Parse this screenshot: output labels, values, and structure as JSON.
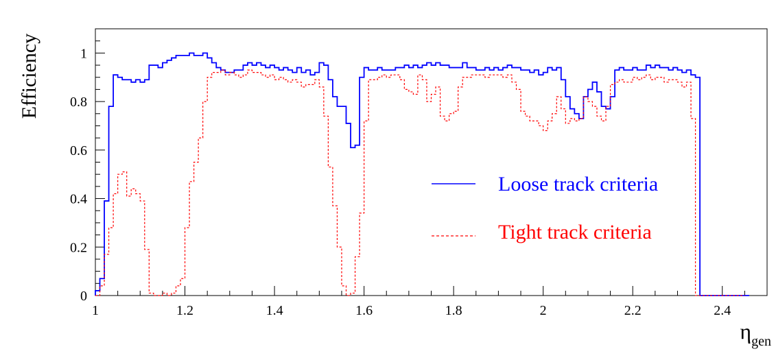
{
  "chart_data": {
    "type": "line",
    "style": "step-histogram",
    "xlabel": "η",
    "xlabel_sub": "gen",
    "ylabel": "Efficiency",
    "xlim": [
      1.0,
      2.5
    ],
    "ylim": [
      0.0,
      1.1
    ],
    "xticks": [
      1,
      1.2,
      1.4,
      1.6,
      1.8,
      2,
      2.2,
      2.4
    ],
    "xtick_labels": [
      "1",
      "1.2",
      "1.4",
      "1.6",
      "1.8",
      "2",
      "2.2",
      "2.4"
    ],
    "yticks": [
      0,
      0.2,
      0.4,
      0.6,
      0.8,
      1
    ],
    "ytick_labels": [
      "0",
      "0.2",
      "0.4",
      "0.6",
      "0.8",
      "1"
    ],
    "grid": false,
    "legend_position": "center-right",
    "bin_width": 0.01,
    "bin_start": 1.0,
    "series": [
      {
        "name": "Loose track criteria",
        "color": "#0000ff",
        "line": "solid",
        "values": [
          0.02,
          0.07,
          0.39,
          0.78,
          0.91,
          0.9,
          0.89,
          0.89,
          0.88,
          0.89,
          0.88,
          0.89,
          0.95,
          0.95,
          0.94,
          0.96,
          0.97,
          0.98,
          0.99,
          0.99,
          0.99,
          1.0,
          0.99,
          0.99,
          1.0,
          0.98,
          0.96,
          0.94,
          0.93,
          0.92,
          0.92,
          0.93,
          0.93,
          0.95,
          0.96,
          0.95,
          0.96,
          0.95,
          0.94,
          0.95,
          0.94,
          0.93,
          0.94,
          0.93,
          0.92,
          0.94,
          0.92,
          0.93,
          0.91,
          0.92,
          0.96,
          0.95,
          0.89,
          0.82,
          0.78,
          0.78,
          0.71,
          0.61,
          0.62,
          0.9,
          0.94,
          0.93,
          0.93,
          0.94,
          0.93,
          0.93,
          0.93,
          0.94,
          0.94,
          0.95,
          0.94,
          0.95,
          0.94,
          0.95,
          0.96,
          0.95,
          0.96,
          0.95,
          0.95,
          0.94,
          0.94,
          0.94,
          0.96,
          0.94,
          0.94,
          0.93,
          0.93,
          0.94,
          0.93,
          0.94,
          0.93,
          0.94,
          0.95,
          0.94,
          0.94,
          0.93,
          0.93,
          0.92,
          0.93,
          0.91,
          0.92,
          0.94,
          0.93,
          0.94,
          0.89,
          0.82,
          0.77,
          0.75,
          0.73,
          0.82,
          0.85,
          0.88,
          0.84,
          0.78,
          0.77,
          0.82,
          0.93,
          0.94,
          0.93,
          0.93,
          0.94,
          0.93,
          0.93,
          0.95,
          0.94,
          0.95,
          0.94,
          0.94,
          0.93,
          0.94,
          0.93,
          0.92,
          0.93,
          0.91,
          0.9,
          0.0,
          0.0,
          0.0,
          0.0,
          0.0,
          0.0,
          0.0,
          0.0,
          0.0,
          0.0,
          0.0
        ]
      },
      {
        "name": "Tight track criteria",
        "color": "#ff0000",
        "line": "dashed",
        "values": [
          0.0,
          0.04,
          0.17,
          0.28,
          0.42,
          0.5,
          0.51,
          0.41,
          0.44,
          0.42,
          0.39,
          0.19,
          0.01,
          0.0,
          0.0,
          0.01,
          0.0,
          0.01,
          0.04,
          0.07,
          0.28,
          0.47,
          0.55,
          0.65,
          0.8,
          0.9,
          0.92,
          0.92,
          0.93,
          0.91,
          0.92,
          0.91,
          0.9,
          0.91,
          0.93,
          0.92,
          0.92,
          0.91,
          0.9,
          0.91,
          0.89,
          0.9,
          0.89,
          0.88,
          0.89,
          0.88,
          0.86,
          0.87,
          0.87,
          0.89,
          0.86,
          0.74,
          0.53,
          0.37,
          0.2,
          0.04,
          0.0,
          0.01,
          0.16,
          0.34,
          0.72,
          0.89,
          0.89,
          0.9,
          0.91,
          0.9,
          0.91,
          0.91,
          0.89,
          0.85,
          0.84,
          0.83,
          0.91,
          0.89,
          0.8,
          0.83,
          0.86,
          0.74,
          0.72,
          0.75,
          0.76,
          0.86,
          0.9,
          0.9,
          0.91,
          0.91,
          0.91,
          0.9,
          0.91,
          0.91,
          0.91,
          0.9,
          0.91,
          0.88,
          0.85,
          0.76,
          0.74,
          0.72,
          0.72,
          0.7,
          0.68,
          0.72,
          0.75,
          0.82,
          0.77,
          0.71,
          0.73,
          0.72,
          0.73,
          0.82,
          0.8,
          0.78,
          0.74,
          0.72,
          0.78,
          0.87,
          0.88,
          0.89,
          0.88,
          0.88,
          0.9,
          0.89,
          0.9,
          0.91,
          0.89,
          0.9,
          0.9,
          0.88,
          0.89,
          0.89,
          0.88,
          0.86,
          0.88,
          0.73,
          0.0,
          0.0,
          0.0,
          0.0,
          0.0,
          0.0,
          0.0,
          0.0,
          0.0,
          0.0,
          0.0
        ]
      }
    ]
  }
}
